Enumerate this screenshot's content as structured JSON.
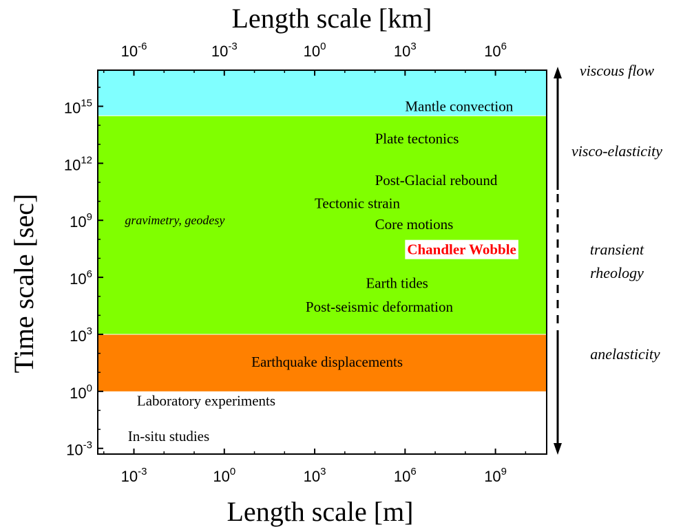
{
  "chart_data": {
    "type": "area",
    "xlabel": "Length scale [m]",
    "x2label": "Length scale [km]",
    "ylabel": "Time scale [sec]",
    "xscale": "log",
    "yscale": "log",
    "xlim_exp": [
      -4.2,
      10.7
    ],
    "ylim_exp": [
      -3.3,
      16.9
    ],
    "x2lim_exp": [
      -7.2,
      7.7
    ],
    "x_ticks_exp": [
      -3,
      0,
      3,
      6,
      9
    ],
    "x2_ticks_exp": [
      -6,
      -3,
      0,
      3,
      6
    ],
    "y_ticks_exp": [
      -3,
      0,
      3,
      6,
      9,
      12,
      15
    ],
    "tick_base": "10",
    "grid": false,
    "bands": [
      {
        "name": "Mantle convection band",
        "y_from_exp": 14.5,
        "y_to_exp": 16.9,
        "color": "#80ffff"
      },
      {
        "name": "Visco-elastic band",
        "y_from_exp": 3.0,
        "y_to_exp": 14.5,
        "color": "#80ff00"
      },
      {
        "name": "Earthquake band",
        "y_from_exp": 0.0,
        "y_to_exp": 3.0,
        "color": "#ff8000"
      }
    ],
    "annotations": [
      {
        "text": "Mantle convection",
        "x_exp": 6.0,
        "y_exp": 15.0,
        "anchor": "start"
      },
      {
        "text": "Plate tectonics",
        "x_exp": 5.0,
        "y_exp": 13.3,
        "anchor": "start"
      },
      {
        "text": "Post-Glacial rebound",
        "x_exp": 5.0,
        "y_exp": 11.1,
        "anchor": "start"
      },
      {
        "text": "Tectonic strain",
        "x_exp": 3.0,
        "y_exp": 9.9,
        "anchor": "start"
      },
      {
        "text": "Core motions",
        "x_exp": 5.0,
        "y_exp": 8.8,
        "anchor": "start"
      },
      {
        "text": "Earth tides",
        "x_exp": 4.7,
        "y_exp": 5.7,
        "anchor": "start"
      },
      {
        "text": "Post-seismic deformation",
        "x_exp": 2.7,
        "y_exp": 4.45,
        "anchor": "start"
      },
      {
        "text": "Earthquake displacements",
        "x_exp": 0.9,
        "y_exp": 1.55,
        "anchor": "start"
      },
      {
        "text": "Laboratory experiments",
        "x_exp": -2.9,
        "y_exp": -0.5,
        "anchor": "start"
      },
      {
        "text": "In-situ studies",
        "x_exp": -3.2,
        "y_exp": -2.35,
        "anchor": "start"
      }
    ],
    "italic_annotation": {
      "text": "gravimetry, geodesy",
      "x_exp": -3.3,
      "y_exp": 9.0
    },
    "highlight": {
      "text": "Chandler Wobble",
      "x_exp": 6.0,
      "y_exp": 7.5,
      "color": "#ff0000",
      "box": "#ffffff"
    },
    "regimes": [
      {
        "label": "viscous flow",
        "lines": [
          "viscous flow"
        ]
      },
      {
        "label": "visco-elasticity",
        "lines": [
          "visco-elasticity"
        ]
      },
      {
        "label": "transient rheology",
        "lines": [
          "transient",
          "rheology"
        ]
      },
      {
        "label": "anelasticity",
        "lines": [
          "anelasticity"
        ]
      }
    ]
  }
}
